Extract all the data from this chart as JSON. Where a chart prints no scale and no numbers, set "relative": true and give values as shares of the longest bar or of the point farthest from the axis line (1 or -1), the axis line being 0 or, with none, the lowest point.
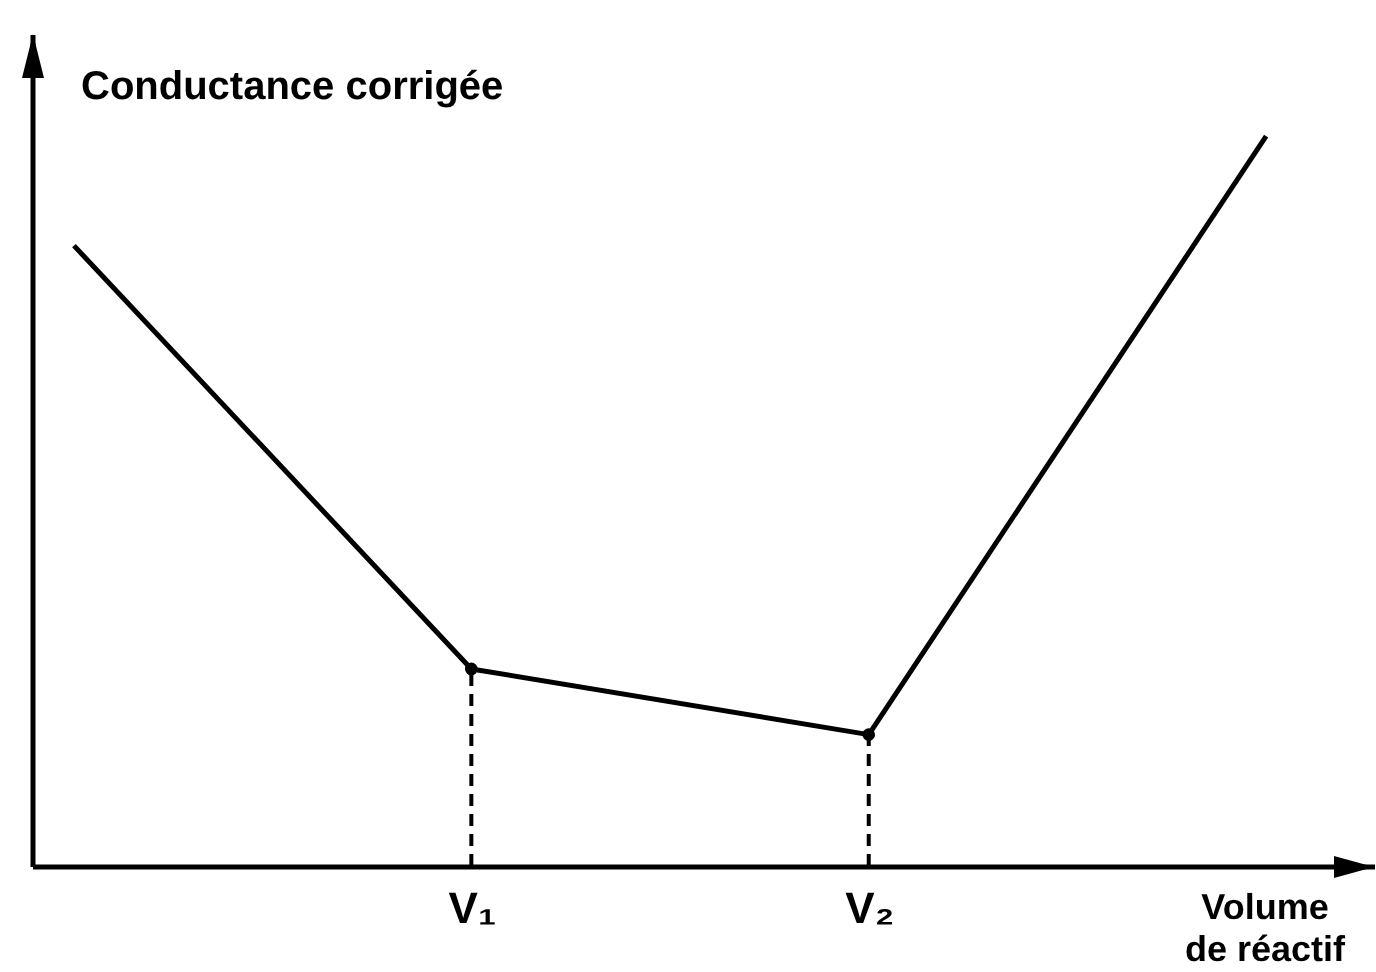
{
  "chart_data": {
    "type": "line",
    "relative": true,
    "ylabel": "Conductance corrigée",
    "xlabel": "Volume de réactif",
    "categories": [
      null,
      "V₁",
      "V₂",
      null
    ],
    "marker": "none",
    "line_style": "solid",
    "series": [
      {
        "color": "#000000",
        "values": [
          0.85,
          0.27,
          0.18,
          1
        ]
      },
      {
        "type": "scatter",
        "marker": "circle",
        "x": [
          "V₁",
          "V₂"
        ],
        "values": [
          0.27,
          0.18
        ],
        "color": "#000000"
      },
      {
        "line_style": "dashed",
        "x": [
          "V₁",
          "V₁"
        ],
        "values": [
          0,
          0.27
        ],
        "color": "#000000"
      },
      {
        "line_style": "dashed",
        "x": [
          "V₂",
          "V₂"
        ],
        "values": [
          0,
          0.18
        ],
        "color": "#000000"
      }
    ]
  }
}
